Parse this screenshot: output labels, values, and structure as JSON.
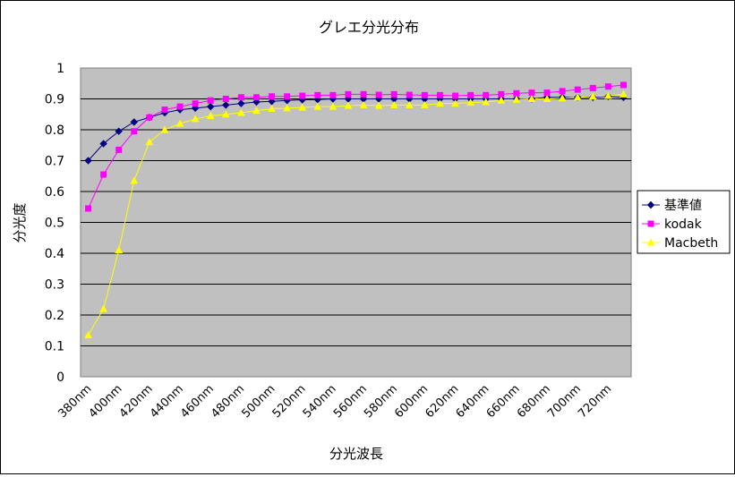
{
  "chart_data": {
    "type": "line",
    "title": "グレエ分光分布",
    "xlabel": "分光波長",
    "ylabel": "分光度",
    "ylim": [
      0,
      1
    ],
    "yticks": [
      "0",
      "0.1",
      "0.2",
      "0.3",
      "0.4",
      "0.5",
      "0.6",
      "0.7",
      "0.8",
      "0.9",
      "1"
    ],
    "grid": true,
    "plot_background": "#c0c0c0",
    "legend_position": "right",
    "x": [
      "380nm",
      "390nm",
      "400nm",
      "410nm",
      "420nm",
      "430nm",
      "440nm",
      "450nm",
      "460nm",
      "470nm",
      "480nm",
      "490nm",
      "500nm",
      "510nm",
      "520nm",
      "530nm",
      "540nm",
      "550nm",
      "560nm",
      "570nm",
      "580nm",
      "590nm",
      "600nm",
      "610nm",
      "620nm",
      "630nm",
      "640nm",
      "650nm",
      "660nm",
      "670nm",
      "680nm",
      "690nm",
      "700nm",
      "710nm",
      "720nm",
      "730nm"
    ],
    "xtick_labels": [
      "380nm",
      "400nm",
      "420nm",
      "440nm",
      "460nm",
      "480nm",
      "500nm",
      "520nm",
      "540nm",
      "560nm",
      "580nm",
      "600nm",
      "620nm",
      "640nm",
      "660nm",
      "680nm",
      "700nm",
      "720nm"
    ],
    "series": [
      {
        "name": "基準値",
        "color": "#000080",
        "marker": "diamond",
        "values": [
          0.7,
          0.755,
          0.795,
          0.825,
          0.84,
          0.855,
          0.865,
          0.87,
          0.875,
          0.88,
          0.885,
          0.89,
          0.892,
          0.895,
          0.897,
          0.898,
          0.9,
          0.9,
          0.9,
          0.9,
          0.9,
          0.9,
          0.9,
          0.9,
          0.9,
          0.9,
          0.9,
          0.9,
          0.9,
          0.9,
          0.905,
          0.905,
          0.905,
          0.905,
          0.908,
          0.905
        ]
      },
      {
        "name": "kodak",
        "color": "#ff00ff",
        "marker": "square",
        "values": [
          0.545,
          0.655,
          0.735,
          0.795,
          0.84,
          0.865,
          0.875,
          0.885,
          0.895,
          0.9,
          0.905,
          0.905,
          0.908,
          0.908,
          0.91,
          0.912,
          0.912,
          0.915,
          0.915,
          0.913,
          0.915,
          0.913,
          0.912,
          0.912,
          0.91,
          0.912,
          0.912,
          0.915,
          0.918,
          0.92,
          0.92,
          0.925,
          0.93,
          0.935,
          0.94,
          0.945
        ]
      },
      {
        "name": "Macbeth",
        "color": "#ffff00",
        "marker": "triangle",
        "values": [
          0.135,
          0.22,
          0.41,
          0.635,
          0.76,
          0.8,
          0.82,
          0.835,
          0.845,
          0.85,
          0.855,
          0.862,
          0.868,
          0.87,
          0.872,
          0.875,
          0.875,
          0.878,
          0.88,
          0.878,
          0.88,
          0.88,
          0.88,
          0.885,
          0.885,
          0.888,
          0.89,
          0.895,
          0.898,
          0.9,
          0.9,
          0.902,
          0.905,
          0.908,
          0.91,
          0.915
        ]
      }
    ]
  }
}
